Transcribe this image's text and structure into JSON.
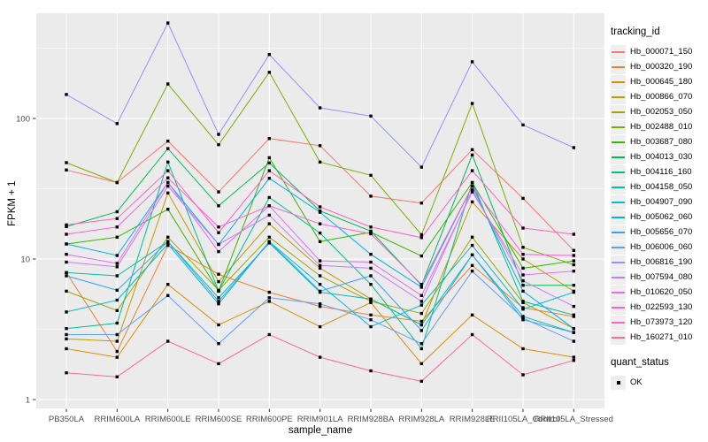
{
  "legend": {
    "tracking_title": "tracking_id",
    "quant_title": "quant_status",
    "quant_items": [
      {
        "label": "OK",
        "shape": "filled-square",
        "color": "#000000"
      }
    ]
  },
  "chart_data": {
    "type": "line",
    "title": "",
    "xlabel": "sample_name",
    "ylabel": "FPKM + 1",
    "y_scale": "log10",
    "ylim": [
      1,
      500
    ],
    "y_ticks": [
      "1",
      "10",
      "100"
    ],
    "grid": true,
    "legend_position": "right",
    "panel_background": "#EBEBEB",
    "gridline_color": "#FFFFFF",
    "tick_label_color": "#4D4D4D",
    "point_shape": "filled-square",
    "point_color": "#000000",
    "categories": [
      "PB350LA",
      "RRIM600LA",
      "RRIM600LE",
      "RRIM600SE",
      "RRIM600PE",
      "RRIM901LA",
      "RRIM928BA",
      "RRIM928LA",
      "RRIM928LE",
      "RRII105LA_Control",
      "RRII105LA_Stressed"
    ],
    "series": [
      {
        "name": "Hb_000071_150",
        "color": "#F8766D",
        "values": [
          43,
          35,
          69,
          30,
          72,
          64,
          28,
          25,
          60,
          27,
          11.5
        ]
      },
      {
        "name": "Hb_000320_190",
        "color": "#EA8331",
        "values": [
          8,
          2.2,
          12.5,
          7.8,
          5.8,
          4.6,
          4,
          3.6,
          9,
          4.5,
          3.9
        ]
      },
      {
        "name": "Hb_000645_180",
        "color": "#D89000",
        "values": [
          2.3,
          2,
          6.6,
          3.4,
          5,
          3.3,
          4.9,
          1.8,
          4,
          2.3,
          2
        ]
      },
      {
        "name": "Hb_000866_070",
        "color": "#C09B00",
        "values": [
          2.7,
          2.6,
          29.5,
          6.9,
          17.8,
          8.6,
          5.2,
          3.4,
          25.5,
          10,
          5.9
        ]
      },
      {
        "name": "Hb_002053_050",
        "color": "#A3A500",
        "values": [
          5.9,
          4.3,
          14.3,
          6,
          14.3,
          7.6,
          5,
          4.1,
          14.3,
          4.9,
          3.2
        ]
      },
      {
        "name": "Hb_002488_010",
        "color": "#7CAE00",
        "values": [
          48.5,
          35,
          176,
          65,
          213,
          49,
          39.4,
          14.9,
          128,
          12.1,
          9.1
        ]
      },
      {
        "name": "Hb_003687_080",
        "color": "#39B600",
        "values": [
          12.8,
          14.3,
          22.6,
          5.9,
          52.6,
          13.3,
          15.5,
          10.5,
          35,
          8.6,
          9.7
        ]
      },
      {
        "name": "Hb_004013_030",
        "color": "#00BB4E",
        "values": [
          17,
          21.7,
          61,
          23.9,
          48.3,
          22,
          15.8,
          6.5,
          55,
          6.5,
          6.5
        ]
      },
      {
        "name": "Hb_004116_160",
        "color": "#00C087",
        "values": [
          3.2,
          3.5,
          49,
          5.9,
          27.4,
          15.3,
          6.6,
          2.3,
          35,
          5,
          4
        ]
      },
      {
        "name": "Hb_004158_050",
        "color": "#00C0AF",
        "values": [
          8,
          7.6,
          13.3,
          5.3,
          13,
          5.8,
          5.2,
          3.4,
          10.7,
          3.9,
          3
        ]
      },
      {
        "name": "Hb_004907_090",
        "color": "#00BCD8",
        "values": [
          4.2,
          5.1,
          12.8,
          4.8,
          13.3,
          6.6,
          3.3,
          4.7,
          12.5,
          4.4,
          5.8
        ]
      },
      {
        "name": "Hb_005062_060",
        "color": "#00B0F6",
        "values": [
          12.8,
          10.6,
          35,
          12.7,
          37.5,
          21.5,
          10.8,
          6.3,
          33,
          5.9,
          3.2
        ]
      },
      {
        "name": "Hb_005656_070",
        "color": "#35A2FF",
        "values": [
          7.6,
          6,
          13.3,
          5,
          13.3,
          5.9,
          7.6,
          3.1,
          10.7,
          3.7,
          3
        ]
      },
      {
        "name": "Hb_006006_060",
        "color": "#619CFF",
        "values": [
          2.9,
          2.9,
          5.5,
          2.5,
          5.3,
          4.8,
          3.7,
          2.5,
          8.2,
          3.8,
          2.6
        ]
      },
      {
        "name": "Hb_006816_190",
        "color": "#9590FF",
        "values": [
          148,
          92,
          478,
          77,
          285,
          119,
          104,
          45,
          253,
          90,
          62
        ]
      },
      {
        "name": "Hb_007594_080",
        "color": "#C77CFF",
        "values": [
          9.5,
          8.8,
          33,
          12.7,
          20.5,
          9,
          8.6,
          5,
          31,
          7,
          4.6
        ]
      },
      {
        "name": "Hb_010620_050",
        "color": "#E76BF3",
        "values": [
          10.8,
          9.3,
          35,
          11.3,
          23.9,
          9.7,
          9.5,
          5.5,
          30,
          7.7,
          8.2
        ]
      },
      {
        "name": "Hb_022593_130",
        "color": "#FA62DB",
        "values": [
          15,
          16.9,
          37.8,
          16.9,
          23.9,
          17.8,
          15.1,
          6.6,
          33,
          10.8,
          10.6
        ]
      },
      {
        "name": "Hb_073973_120",
        "color": "#FF61C3",
        "values": [
          17.5,
          19.4,
          42.5,
          15.4,
          42.5,
          23.5,
          16.9,
          14.2,
          42.5,
          16.6,
          15
        ]
      },
      {
        "name": "Hb_160271_010",
        "color": "#FF6B94",
        "values": [
          1.55,
          1.45,
          2.6,
          1.8,
          2.9,
          2,
          1.6,
          1.35,
          2.9,
          1.5,
          1.9
        ]
      }
    ]
  }
}
